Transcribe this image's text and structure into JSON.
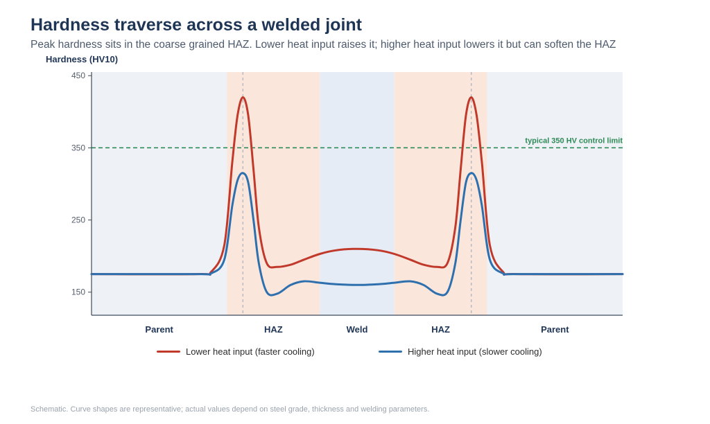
{
  "title": "Hardness traverse across a welded joint",
  "subtitle": "Peak hardness sits in the coarse grained HAZ. Lower heat input raises it; higher heat input lowers it but can soften the HAZ",
  "footnote": "Schematic. Curve shapes are representative; actual values depend on steel grade, thickness and welding parameters.",
  "chart_data": {
    "type": "line",
    "title": "Hardness traverse across a welded joint",
    "ylabel": "Hardness (HV10)",
    "xlabel": "",
    "ylim": [
      118,
      455
    ],
    "yticks": [
      150,
      250,
      350,
      450
    ],
    "xlim": [
      -1,
      1
    ],
    "grid": false,
    "legend_position": "bottom",
    "zones": [
      {
        "label": "Parent",
        "from": -1.0,
        "to": -0.49,
        "color": "#eef1f6"
      },
      {
        "label": "HAZ",
        "from": -0.49,
        "to": -0.14,
        "color": "#fbe6dc"
      },
      {
        "label": "Weld",
        "from": -0.14,
        "to": 0.14,
        "color": "#e6ecf5"
      },
      {
        "label": "HAZ",
        "from": 0.14,
        "to": 0.49,
        "color": "#fbe6dc"
      },
      {
        "label": "Parent",
        "from": 0.49,
        "to": 1.0,
        "color": "#eef1f6"
      }
    ],
    "peak_markers": [
      -0.43,
      0.43
    ],
    "reference_line": {
      "y": 350,
      "label": "typical 350 HV control limit",
      "color": "#2e8b57"
    },
    "x": [
      -1.0,
      -0.6,
      -0.55,
      -0.5,
      -0.47,
      -0.45,
      -0.43,
      -0.41,
      -0.39,
      -0.37,
      -0.34,
      -0.3,
      -0.25,
      -0.2,
      -0.14,
      -0.08,
      0.0,
      0.08,
      0.14,
      0.2,
      0.25,
      0.3,
      0.34,
      0.37,
      0.39,
      0.41,
      0.43,
      0.45,
      0.47,
      0.5,
      0.55,
      0.6,
      1.0
    ],
    "series": [
      {
        "name": "Lower heat input (faster cooling)",
        "color": "#c0392b",
        "values": [
          175,
          175,
          178,
          215,
          330,
          395,
          420,
          395,
          320,
          240,
          190,
          185,
          188,
          195,
          203,
          208,
          210,
          208,
          203,
          195,
          188,
          185,
          190,
          240,
          320,
          395,
          420,
          395,
          330,
          215,
          178,
          175,
          175
        ]
      },
      {
        "name": "Higher heat input (slower cooling)",
        "color": "#2e6fae",
        "values": [
          175,
          175,
          176,
          195,
          270,
          305,
          315,
          302,
          250,
          190,
          150,
          148,
          160,
          165,
          163,
          161,
          160,
          161,
          163,
          165,
          160,
          148,
          150,
          190,
          250,
          302,
          315,
          305,
          270,
          195,
          176,
          175,
          175
        ]
      }
    ]
  }
}
